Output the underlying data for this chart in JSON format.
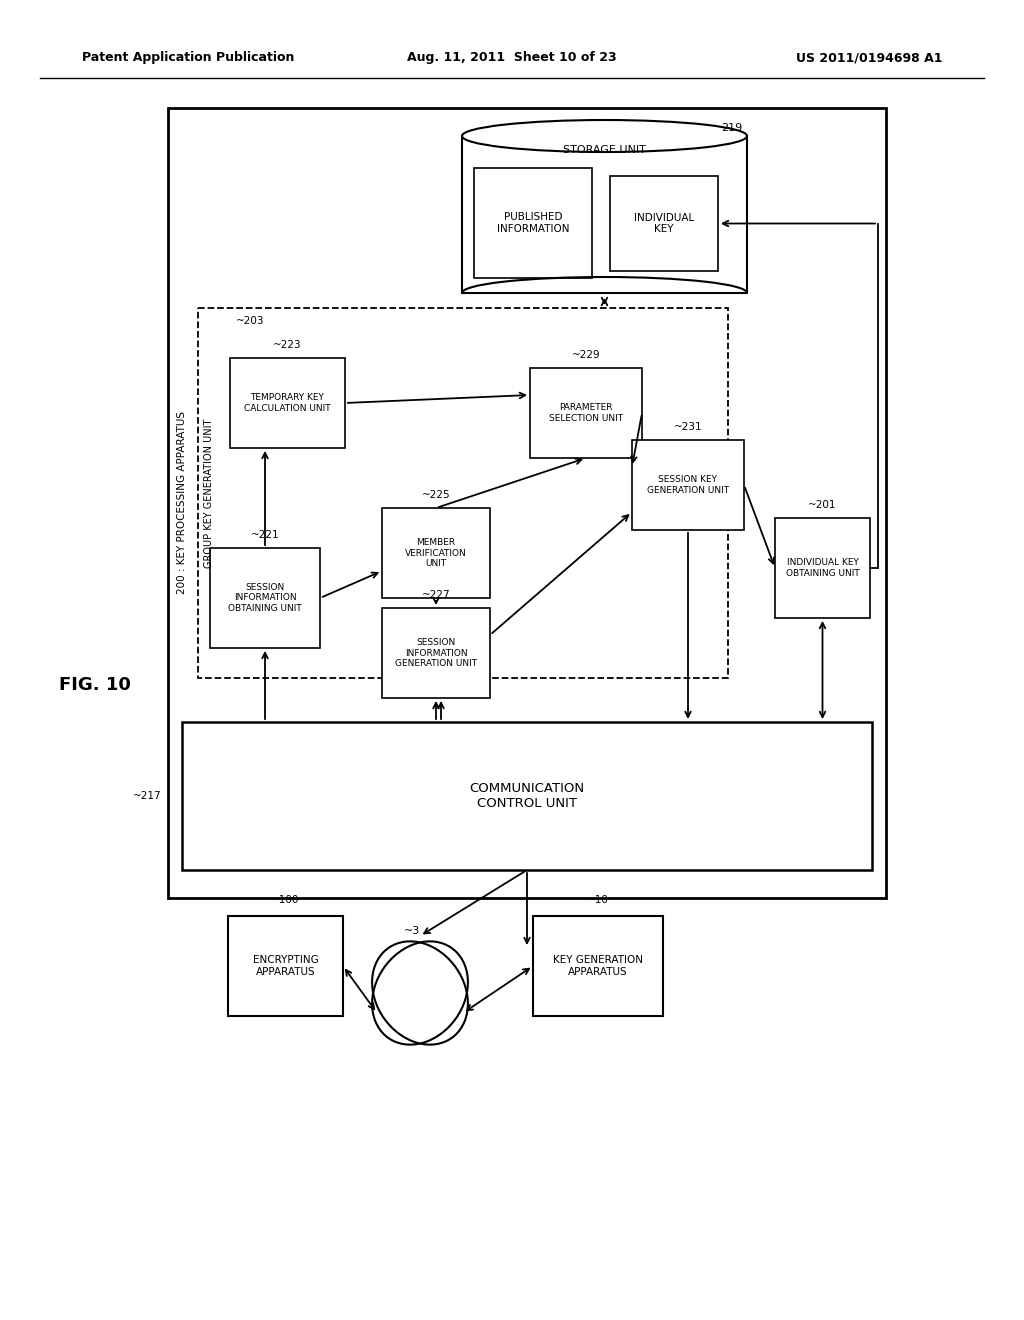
{
  "header_left": "Patent Application Publication",
  "header_mid": "Aug. 11, 2011  Sheet 10 of 23",
  "header_right": "US 2011/0194698 A1",
  "fig_label": "FIG. 10",
  "background": "#ffffff"
}
